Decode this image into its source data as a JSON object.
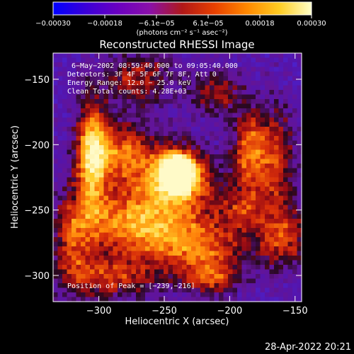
{
  "chart_data": {
    "type": "heatmap",
    "title": "Reconstructed RHESSI Image",
    "xlabel": "Heliocentric X (arcsec)",
    "ylabel": "Heliocentric Y (arcsec)",
    "xlim": [
      -335,
      -145
    ],
    "ylim": [
      -320,
      -130
    ],
    "x_ticks": [
      {
        "value": -300,
        "label": "−300"
      },
      {
        "value": -250,
        "label": "−250"
      },
      {
        "value": -200,
        "label": "−200"
      },
      {
        "value": -150,
        "label": "−150"
      }
    ],
    "y_ticks": [
      {
        "value": -150,
        "label": "−150"
      },
      {
        "value": -200,
        "label": "−200"
      },
      {
        "value": -250,
        "label": "−250"
      },
      {
        "value": -300,
        "label": "−300"
      }
    ],
    "colorbar": {
      "range": [
        -0.0003,
        0.0003
      ],
      "tick_labels": [
        "−0.00030",
        "−0.00018",
        "−6.1e−05",
        "6.1e−05",
        "0.00018",
        "0.00030"
      ],
      "unit_text": "(photons cm⁻² s⁻¹ asec⁻²)",
      "colors": [
        "#0000ff",
        "#3a00d8",
        "#6a00c0",
        "#8a10a8",
        "#b01818",
        "#e84000",
        "#ff8800",
        "#ffcc22",
        "#ffffc8"
      ]
    },
    "annotations": [
      "6−May−2002 08:59:40.000 to 09:05:40.000",
      "Detectors: 3F 4F 5F 6F 7F 8F, Att 0",
      "Energy Range: 12.0 − 25.0 keV",
      "Clean      Total counts: 4.28E+03"
    ],
    "peak_label": "Position of Peak = [−239,−216]",
    "peak": {
      "x": -239,
      "y": -216
    },
    "blobs": [
      {
        "x": -240,
        "y": -221,
        "sx": 10,
        "sy": 10,
        "a": 1.3
      },
      {
        "x": -245,
        "y": -235,
        "sx": 28,
        "sy": 22,
        "a": 0.7
      },
      {
        "x": -305,
        "y": -210,
        "sx": 8,
        "sy": 32,
        "a": 0.8
      },
      {
        "x": -285,
        "y": -205,
        "sx": 18,
        "sy": 15,
        "a": 0.55
      },
      {
        "x": -282,
        "y": -260,
        "sx": 24,
        "sy": 14,
        "a": 0.55
      },
      {
        "x": -230,
        "y": -275,
        "sx": 30,
        "sy": 12,
        "a": 0.6
      },
      {
        "x": -215,
        "y": -300,
        "sx": 16,
        "sy": 10,
        "a": 0.6
      },
      {
        "x": -290,
        "y": -300,
        "sx": 28,
        "sy": 12,
        "a": 0.5
      },
      {
        "x": -270,
        "y": -150,
        "sx": 18,
        "sy": 14,
        "a": 0.45
      },
      {
        "x": -210,
        "y": -160,
        "sx": 14,
        "sy": 12,
        "a": 0.4
      },
      {
        "x": -185,
        "y": -205,
        "sx": 8,
        "sy": 22,
        "a": 0.6
      },
      {
        "x": -165,
        "y": -210,
        "sx": 10,
        "sy": 26,
        "a": 0.55
      },
      {
        "x": -160,
        "y": -270,
        "sx": 14,
        "sy": 18,
        "a": 0.5
      },
      {
        "x": -190,
        "y": -250,
        "sx": 12,
        "sy": 10,
        "a": 0.35
      },
      {
        "x": -320,
        "y": -270,
        "sx": 10,
        "sy": 25,
        "a": 0.45
      }
    ]
  },
  "footer": {
    "timestamp": "28-Apr-2022 20:21"
  }
}
